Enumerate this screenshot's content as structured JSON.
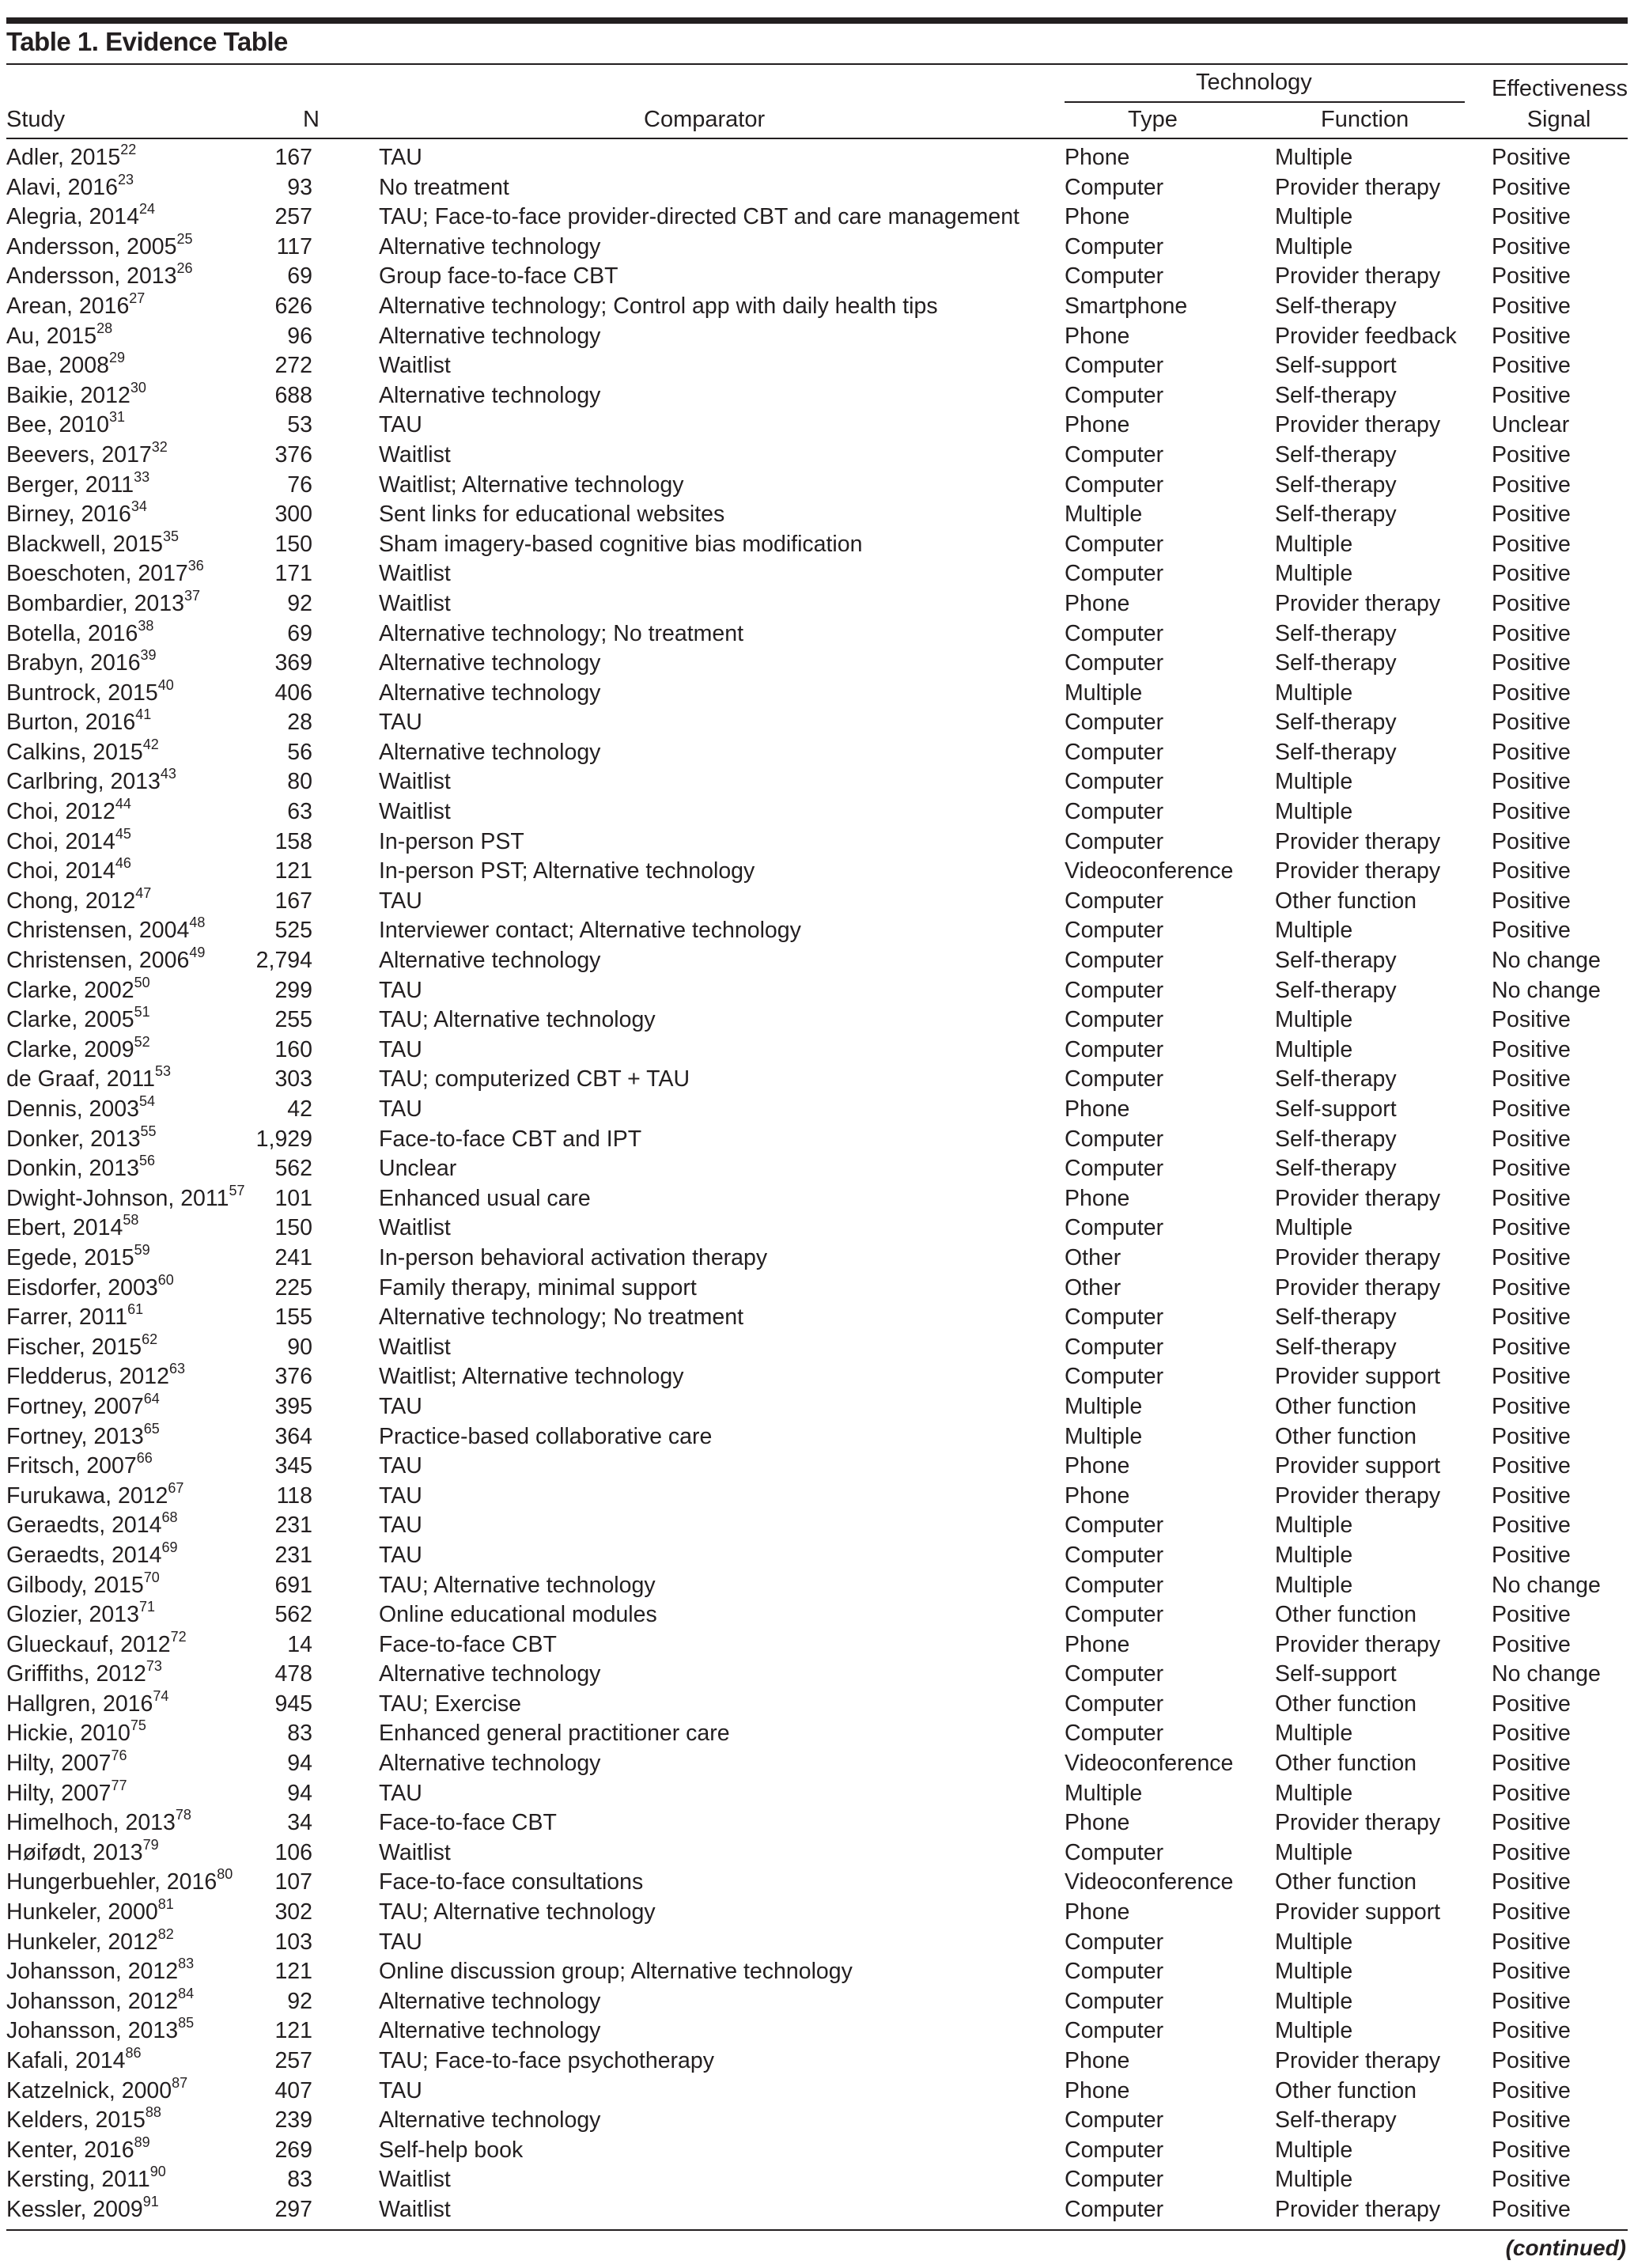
{
  "title": "Table 1. Evidence Table",
  "headers": {
    "study": "Study",
    "n": "N",
    "comparator": "Comparator",
    "technology": "Technology",
    "type": "Type",
    "function": "Function",
    "signal_line1": "Effectiveness",
    "signal_line2": "Signal"
  },
  "rows": [
    [
      "Adler, 2015",
      "22",
      "167",
      "TAU",
      "Phone",
      "Multiple",
      "Positive"
    ],
    [
      "Alavi, 2016",
      "23",
      "93",
      "No treatment",
      "Computer",
      "Provider therapy",
      "Positive"
    ],
    [
      "Alegria, 2014",
      "24",
      "257",
      "TAU; Face-to-face provider-directed CBT and care management",
      "Phone",
      "Multiple",
      "Positive"
    ],
    [
      "Andersson, 2005",
      "25",
      "117",
      "Alternative technology",
      "Computer",
      "Multiple",
      "Positive"
    ],
    [
      "Andersson, 2013",
      "26",
      "69",
      "Group face-to-face CBT",
      "Computer",
      "Provider therapy",
      "Positive"
    ],
    [
      "Arean, 2016",
      "27",
      "626",
      "Alternative technology; Control app with daily health tips",
      "Smartphone",
      "Self-therapy",
      "Positive"
    ],
    [
      "Au, 2015",
      "28",
      "96",
      "Alternative technology",
      "Phone",
      "Provider feedback",
      "Positive"
    ],
    [
      "Bae, 2008",
      "29",
      "272",
      "Waitlist",
      "Computer",
      "Self-support",
      "Positive"
    ],
    [
      "Baikie, 2012",
      "30",
      "688",
      "Alternative technology",
      "Computer",
      "Self-therapy",
      "Positive"
    ],
    [
      "Bee, 2010",
      "31",
      "53",
      "TAU",
      "Phone",
      "Provider therapy",
      "Unclear"
    ],
    [
      "Beevers, 2017",
      "32",
      "376",
      "Waitlist",
      "Computer",
      "Self-therapy",
      "Positive"
    ],
    [
      "Berger, 2011",
      "33",
      "76",
      "Waitlist; Alternative technology",
      "Computer",
      "Self-therapy",
      "Positive"
    ],
    [
      "Birney, 2016",
      "34",
      "300",
      "Sent links for educational websites",
      "Multiple",
      "Self-therapy",
      "Positive"
    ],
    [
      "Blackwell, 2015",
      "35",
      "150",
      "Sham imagery-based cognitive bias modification",
      "Computer",
      "Multiple",
      "Positive"
    ],
    [
      "Boeschoten, 2017",
      "36",
      "171",
      "Waitlist",
      "Computer",
      "Multiple",
      "Positive"
    ],
    [
      "Bombardier, 2013",
      "37",
      "92",
      "Waitlist",
      "Phone",
      "Provider therapy",
      "Positive"
    ],
    [
      "Botella, 2016",
      "38",
      "69",
      "Alternative technology; No treatment",
      "Computer",
      "Self-therapy",
      "Positive"
    ],
    [
      "Brabyn, 2016",
      "39",
      "369",
      "Alternative technology",
      "Computer",
      "Self-therapy",
      "Positive"
    ],
    [
      "Buntrock, 2015",
      "40",
      "406",
      "Alternative technology",
      "Multiple",
      "Multiple",
      "Positive"
    ],
    [
      "Burton, 2016",
      "41",
      "28",
      "TAU",
      "Computer",
      "Self-therapy",
      "Positive"
    ],
    [
      "Calkins, 2015",
      "42",
      "56",
      "Alternative technology",
      "Computer",
      "Self-therapy",
      "Positive"
    ],
    [
      "Carlbring, 2013",
      "43",
      "80",
      "Waitlist",
      "Computer",
      "Multiple",
      "Positive"
    ],
    [
      "Choi, 2012",
      "44",
      "63",
      "Waitlist",
      "Computer",
      "Multiple",
      "Positive"
    ],
    [
      "Choi, 2014",
      "45",
      "158",
      "In-person PST",
      "Computer",
      "Provider therapy",
      "Positive"
    ],
    [
      "Choi, 2014",
      "46",
      "121",
      "In-person PST; Alternative technology",
      "Videoconference",
      "Provider therapy",
      "Positive"
    ],
    [
      "Chong, 2012",
      "47",
      "167",
      "TAU",
      "Computer",
      "Other function",
      "Positive"
    ],
    [
      "Christensen, 2004",
      "48",
      "525",
      "Interviewer contact; Alternative technology",
      "Computer",
      "Multiple",
      "Positive"
    ],
    [
      "Christensen, 2006",
      "49",
      "2,794",
      "Alternative technology",
      "Computer",
      "Self-therapy",
      "No change"
    ],
    [
      "Clarke, 2002",
      "50",
      "299",
      "TAU",
      "Computer",
      "Self-therapy",
      "No change"
    ],
    [
      "Clarke, 2005",
      "51",
      "255",
      "TAU; Alternative technology",
      "Computer",
      "Multiple",
      "Positive"
    ],
    [
      "Clarke, 2009",
      "52",
      "160",
      "TAU",
      "Computer",
      "Multiple",
      "Positive"
    ],
    [
      "de Graaf, 2011",
      "53",
      "303",
      "TAU; computerized CBT + TAU",
      "Computer",
      "Self-therapy",
      "Positive"
    ],
    [
      "Dennis, 2003",
      "54",
      "42",
      "TAU",
      "Phone",
      "Self-support",
      "Positive"
    ],
    [
      "Donker, 2013",
      "55",
      "1,929",
      "Face-to-face CBT and IPT",
      "Computer",
      "Self-therapy",
      "Positive"
    ],
    [
      "Donkin, 2013",
      "56",
      "562",
      "Unclear",
      "Computer",
      "Self-therapy",
      "Positive"
    ],
    [
      "Dwight-Johnson, 2011",
      "57",
      "101",
      "Enhanced usual care",
      "Phone",
      "Provider therapy",
      "Positive"
    ],
    [
      "Ebert, 2014",
      "58",
      "150",
      "Waitlist",
      "Computer",
      "Multiple",
      "Positive"
    ],
    [
      "Egede, 2015",
      "59",
      "241",
      "In-person behavioral activation therapy",
      "Other",
      "Provider therapy",
      "Positive"
    ],
    [
      "Eisdorfer, 2003",
      "60",
      "225",
      "Family therapy, minimal support",
      "Other",
      "Provider therapy",
      "Positive"
    ],
    [
      "Farrer, 2011",
      "61",
      "155",
      "Alternative technology; No treatment",
      "Computer",
      "Self-therapy",
      "Positive"
    ],
    [
      "Fischer, 2015",
      "62",
      "90",
      "Waitlist",
      "Computer",
      "Self-therapy",
      "Positive"
    ],
    [
      "Fledderus, 2012",
      "63",
      "376",
      "Waitlist; Alternative technology",
      "Computer",
      "Provider support",
      "Positive"
    ],
    [
      "Fortney, 2007",
      "64",
      "395",
      "TAU",
      "Multiple",
      "Other function",
      "Positive"
    ],
    [
      "Fortney, 2013",
      "65",
      "364",
      "Practice-based collaborative care",
      "Multiple",
      "Other function",
      "Positive"
    ],
    [
      "Fritsch, 2007",
      "66",
      "345",
      "TAU",
      "Phone",
      "Provider support",
      "Positive"
    ],
    [
      "Furukawa, 2012",
      "67",
      "118",
      "TAU",
      "Phone",
      "Provider therapy",
      "Positive"
    ],
    [
      "Geraedts, 2014",
      "68",
      "231",
      "TAU",
      "Computer",
      "Multiple",
      "Positive"
    ],
    [
      "Geraedts, 2014",
      "69",
      "231",
      "TAU",
      "Computer",
      "Multiple",
      "Positive"
    ],
    [
      "Gilbody, 2015",
      "70",
      "691",
      "TAU; Alternative technology",
      "Computer",
      "Multiple",
      "No change"
    ],
    [
      "Glozier, 2013",
      "71",
      "562",
      "Online educational modules",
      "Computer",
      "Other function",
      "Positive"
    ],
    [
      "Glueckauf, 2012",
      "72",
      "14",
      "Face-to-face CBT",
      "Phone",
      "Provider therapy",
      "Positive"
    ],
    [
      "Griffiths, 2012",
      "73",
      "478",
      "Alternative technology",
      "Computer",
      "Self-support",
      "No change"
    ],
    [
      "Hallgren, 2016",
      "74",
      "945",
      "TAU; Exercise",
      "Computer",
      "Other function",
      "Positive"
    ],
    [
      "Hickie, 2010",
      "75",
      "83",
      "Enhanced general practitioner care",
      "Computer",
      "Multiple",
      "Positive"
    ],
    [
      "Hilty, 2007",
      "76",
      "94",
      "Alternative technology",
      "Videoconference",
      "Other function",
      "Positive"
    ],
    [
      "Hilty, 2007",
      "77",
      "94",
      "TAU",
      "Multiple",
      "Multiple",
      "Positive"
    ],
    [
      "Himelhoch, 2013",
      "78",
      "34",
      "Face-to-face CBT",
      "Phone",
      "Provider therapy",
      "Positive"
    ],
    [
      "Høifødt, 2013",
      "79",
      "106",
      "Waitlist",
      "Computer",
      "Multiple",
      "Positive"
    ],
    [
      "Hungerbuehler, 2016",
      "80",
      "107",
      "Face-to-face consultations",
      "Videoconference",
      "Other function",
      "Positive"
    ],
    [
      "Hunkeler, 2000",
      "81",
      "302",
      "TAU; Alternative technology",
      "Phone",
      "Provider support",
      "Positive"
    ],
    [
      "Hunkeler, 2012",
      "82",
      "103",
      "TAU",
      "Computer",
      "Multiple",
      "Positive"
    ],
    [
      "Johansson, 2012",
      "83",
      "121",
      "Online discussion group; Alternative technology",
      "Computer",
      "Multiple",
      "Positive"
    ],
    [
      "Johansson, 2012",
      "84",
      "92",
      "Alternative technology",
      "Computer",
      "Multiple",
      "Positive"
    ],
    [
      "Johansson, 2013",
      "85",
      "121",
      "Alternative technology",
      "Computer",
      "Multiple",
      "Positive"
    ],
    [
      "Kafali, 2014",
      "86",
      "257",
      "TAU; Face-to-face psychotherapy",
      "Phone",
      "Provider therapy",
      "Positive"
    ],
    [
      "Katzelnick, 2000",
      "87",
      "407",
      "TAU",
      "Phone",
      "Other function",
      "Positive"
    ],
    [
      "Kelders, 2015",
      "88",
      "239",
      "Alternative technology",
      "Computer",
      "Self-therapy",
      "Positive"
    ],
    [
      "Kenter, 2016",
      "89",
      "269",
      "Self-help book",
      "Computer",
      "Multiple",
      "Positive"
    ],
    [
      "Kersting, 2011",
      "90",
      "83",
      "Waitlist",
      "Computer",
      "Multiple",
      "Positive"
    ],
    [
      "Kessler, 2009",
      "91",
      "297",
      "Waitlist",
      "Computer",
      "Provider therapy",
      "Positive"
    ]
  ],
  "footer": "(continued)"
}
